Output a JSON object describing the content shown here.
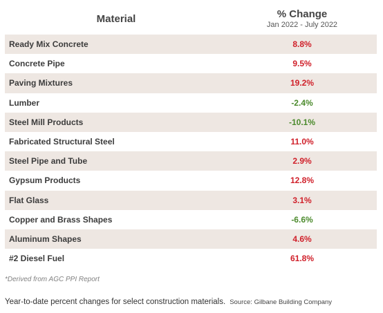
{
  "header": {
    "material": "Material",
    "change": "% Change",
    "period": "Jan 2022 - July 2022"
  },
  "colors": {
    "positive": "#d0202a",
    "negative": "#4b8a2c",
    "row_shade": "#eee7e2"
  },
  "chart_data": {
    "type": "table",
    "columns": [
      "Material",
      "% Change"
    ],
    "rows": [
      {
        "name": "Ready Mix Concrete",
        "value": 8.8,
        "label": "8.8%"
      },
      {
        "name": "Concrete Pipe",
        "value": 9.5,
        "label": "9.5%"
      },
      {
        "name": "Paving Mixtures",
        "value": 19.2,
        "label": "19.2%"
      },
      {
        "name": "Lumber",
        "value": -2.4,
        "label": "-2.4%"
      },
      {
        "name": "Steel Mill Products",
        "value": -10.1,
        "label": "-10.1%"
      },
      {
        "name": "Fabricated Structural Steel",
        "value": 11.0,
        "label": "11.0%"
      },
      {
        "name": "Steel Pipe and Tube",
        "value": 2.9,
        "label": "2.9%"
      },
      {
        "name": "Gypsum Products",
        "value": 12.8,
        "label": "12.8%"
      },
      {
        "name": "Flat Glass",
        "value": 3.1,
        "label": "3.1%"
      },
      {
        "name": "Copper and Brass Shapes",
        "value": -6.6,
        "label": "-6.6%"
      },
      {
        "name": "Aluminum Shapes",
        "value": 4.6,
        "label": "4.6%"
      },
      {
        "name": "#2 Diesel Fuel",
        "value": 61.8,
        "label": "61.8%"
      }
    ]
  },
  "footnote": "*Derived from AGC PPI Report",
  "caption": {
    "text": "Year-to-date percent changes for select construction materials.",
    "source": "Source: Gilbane Building Company"
  }
}
